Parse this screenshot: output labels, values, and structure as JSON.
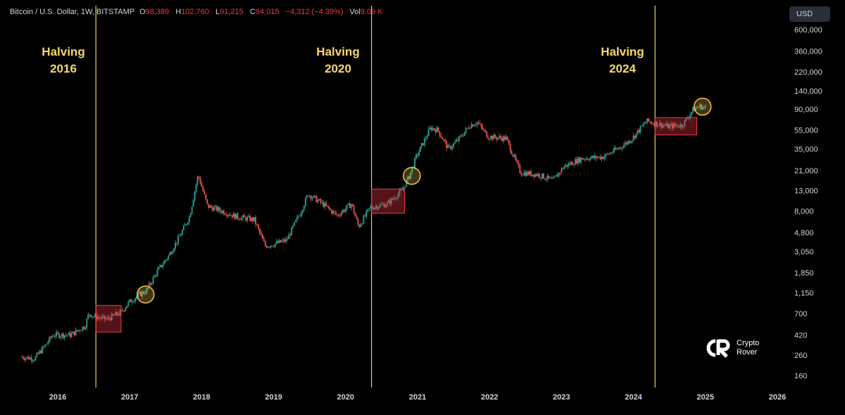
{
  "header": {
    "symbol": "Bitcoin / U.S. Dollar, 1W, BITSTAMP",
    "open_key": "O",
    "open": "98,389",
    "high_key": "H",
    "high": "102,760",
    "low_key": "L",
    "low": "91,215",
    "close_key": "C",
    "close": "94,015",
    "change": "−4,312 (−4.39%)",
    "vol_key": "Vol",
    "vol": "9.09 K"
  },
  "currency": "USD",
  "halvings": [
    {
      "line1": "Halving",
      "line2": "2016",
      "date": 2016.53
    },
    {
      "line1": "Halving",
      "line2": "2020",
      "date": 2020.36
    },
    {
      "line1": "Halving",
      "line2": "2024",
      "date": 2024.3
    }
  ],
  "logo": {
    "line1": "Crypto",
    "line2": "Rover",
    "name": "crypto-rover-logo-icon"
  },
  "chart_data": {
    "type": "candlestick",
    "scale": "log",
    "x_ticks": [
      "2016",
      "2017",
      "2018",
      "2019",
      "2020",
      "2021",
      "2022",
      "2023",
      "2024",
      "2025",
      "2026"
    ],
    "y_ticks": [
      "600,000",
      "360,000",
      "220,000",
      "140,000",
      "90,000",
      "55,000",
      "35,000",
      "21,000",
      "13,000",
      "8,000",
      "4,800",
      "3,050",
      "1,850",
      "1,150",
      "700",
      "420",
      "260",
      "160"
    ],
    "y_tick_values": [
      600000,
      360000,
      220000,
      140000,
      90000,
      55000,
      35000,
      21000,
      13000,
      8000,
      4800,
      3050,
      1850,
      1150,
      700,
      420,
      260,
      160
    ],
    "colors": {
      "up": "#26a69a",
      "down": "#ef5350",
      "halving_line": "#e8d25a",
      "box": "#f23645",
      "circle": "#f5c24a"
    },
    "price_path": [
      [
        2015.5,
        250
      ],
      [
        2015.7,
        240
      ],
      [
        2015.85,
        330
      ],
      [
        2015.95,
        420
      ],
      [
        2016.2,
        420
      ],
      [
        2016.4,
        520
      ],
      [
        2016.45,
        700
      ],
      [
        2016.53,
        650
      ],
      [
        2016.7,
        610
      ],
      [
        2016.9,
        720
      ],
      [
        2017.0,
        900
      ],
      [
        2017.15,
        1100
      ],
      [
        2017.25,
        1200
      ],
      [
        2017.4,
        1900
      ],
      [
        2017.55,
        2700
      ],
      [
        2017.7,
        4200
      ],
      [
        2017.85,
        7000
      ],
      [
        2017.97,
        19000
      ],
      [
        2018.1,
        9000
      ],
      [
        2018.3,
        8000
      ],
      [
        2018.5,
        7000
      ],
      [
        2018.75,
        6500
      ],
      [
        2018.9,
        3500
      ],
      [
        2019.0,
        3600
      ],
      [
        2019.2,
        4000
      ],
      [
        2019.4,
        8000
      ],
      [
        2019.5,
        12000
      ],
      [
        2019.7,
        9500
      ],
      [
        2019.9,
        7200
      ],
      [
        2020.1,
        9500
      ],
      [
        2020.2,
        5500
      ],
      [
        2020.36,
        8700
      ],
      [
        2020.6,
        9500
      ],
      [
        2020.8,
        13000
      ],
      [
        2020.9,
        18000
      ],
      [
        2021.0,
        29000
      ],
      [
        2021.2,
        58000
      ],
      [
        2021.3,
        55000
      ],
      [
        2021.45,
        35000
      ],
      [
        2021.6,
        45000
      ],
      [
        2021.75,
        62000
      ],
      [
        2021.85,
        66000
      ],
      [
        2022.0,
        47000
      ],
      [
        2022.25,
        45000
      ],
      [
        2022.45,
        20000
      ],
      [
        2022.7,
        19000
      ],
      [
        2022.9,
        16500
      ],
      [
        2023.05,
        23000
      ],
      [
        2023.3,
        28000
      ],
      [
        2023.6,
        29000
      ],
      [
        2023.85,
        37000
      ],
      [
        2024.0,
        45000
      ],
      [
        2024.2,
        68000
      ],
      [
        2024.5,
        60000
      ],
      [
        2024.7,
        62000
      ],
      [
        2024.85,
        90000
      ],
      [
        2024.95,
        97000
      ],
      [
        2025.0,
        94015
      ]
    ],
    "annotations": [
      {
        "type": "box",
        "x0": 2016.53,
        "x1": 2016.88,
        "y0": 450,
        "y1": 850
      },
      {
        "type": "box",
        "x0": 2020.36,
        "x1": 2020.82,
        "y0": 7600,
        "y1": 13500
      },
      {
        "type": "box",
        "x0": 2024.3,
        "x1": 2024.88,
        "y0": 49000,
        "y1": 74000
      },
      {
        "type": "circle",
        "x": 2017.22,
        "y": 1100
      },
      {
        "type": "circle",
        "x": 2020.92,
        "y": 18500
      },
      {
        "type": "circle",
        "x": 2024.96,
        "y": 96000
      }
    ]
  }
}
